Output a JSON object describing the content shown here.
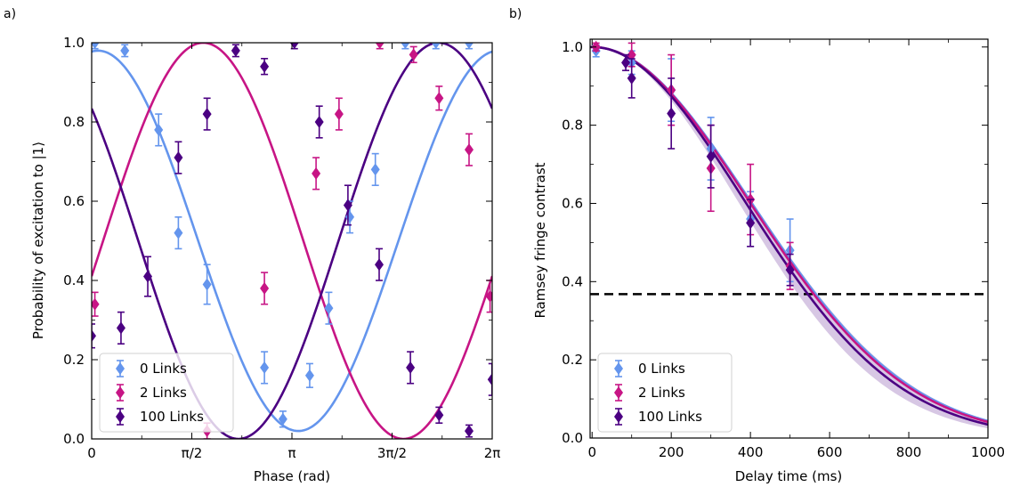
{
  "colors": {
    "0 Links": "#6495ed",
    "2 Links": "#c71585",
    "100 Links": "#4b0082"
  },
  "chart_data": [
    {
      "panel_label": "a)",
      "type": "scatter",
      "xlabel": "Phase (rad)",
      "ylabel": "Probability of excitation to |1⟩",
      "xlim": [
        0,
        6.2832
      ],
      "ylim": [
        0,
        1
      ],
      "xticks": [
        0,
        1.5708,
        3.1416,
        4.7124,
        6.2832
      ],
      "xtick_labels": [
        "0",
        "π/2",
        "π",
        "3π/2",
        "2π"
      ],
      "yticks": [
        0,
        0.2,
        0.4,
        0.6,
        0.8,
        1.0
      ],
      "ytick_labels": [
        "0.0",
        "0.2",
        "0.4",
        "0.6",
        "0.8",
        "1.0"
      ],
      "legend": [
        "0 Links",
        "2 Links",
        "100 Links"
      ],
      "legend_position": "lower-left",
      "series": [
        {
          "name": "0 Links",
          "fit": {
            "offset": 0.5,
            "amplitude": 0.48,
            "phase_shift": 0.1
          },
          "x": [
            0.05,
            0.52,
            1.05,
            1.36,
            1.81,
            2.71,
            3.0,
            3.42,
            3.72,
            4.05,
            4.45,
            4.92,
            5.4,
            5.92
          ],
          "y": [
            1.0,
            0.98,
            0.78,
            0.52,
            0.39,
            0.18,
            0.05,
            0.16,
            0.33,
            0.56,
            0.68,
            1.0,
            1.0,
            1.0
          ],
          "err": [
            0.015,
            0.015,
            0.04,
            0.04,
            0.05,
            0.04,
            0.02,
            0.03,
            0.04,
            0.04,
            0.04,
            0.015,
            0.015,
            0.015
          ]
        },
        {
          "name": "2 Links",
          "fit": {
            "offset": 0.5,
            "amplitude": 0.5,
            "phase_shift": 1.75
          },
          "x": [
            0.05,
            1.81,
            2.71,
            3.52,
            3.88,
            4.52,
            5.05,
            5.45,
            5.92,
            6.25
          ],
          "y": [
            0.34,
            0.02,
            0.38,
            0.67,
            0.82,
            1.0,
            0.97,
            0.86,
            0.73,
            0.36
          ],
          "err": [
            0.03,
            0.02,
            0.04,
            0.04,
            0.04,
            0.015,
            0.02,
            0.03,
            0.04,
            0.04
          ]
        },
        {
          "name": "100 Links",
          "fit": {
            "offset": 0.5,
            "amplitude": 0.5,
            "phase_shift": -0.84
          },
          "x": [
            0.0,
            0.46,
            0.88,
            1.36,
            1.81,
            2.26,
            2.71,
            3.18,
            3.57,
            4.02,
            4.51,
            5.0,
            5.45,
            5.92,
            6.28
          ],
          "y": [
            0.26,
            0.28,
            0.41,
            0.71,
            0.82,
            0.98,
            0.94,
            1.0,
            0.8,
            0.59,
            0.44,
            0.18,
            0.06,
            0.02,
            0.15
          ],
          "err": [
            0.03,
            0.04,
            0.05,
            0.04,
            0.04,
            0.015,
            0.02,
            0.015,
            0.04,
            0.05,
            0.04,
            0.04,
            0.02,
            0.015,
            0.04
          ]
        }
      ]
    },
    {
      "panel_label": "b)",
      "type": "scatter",
      "xlabel": "Delay time (ms)",
      "ylabel": "Ramsey fringe contrast",
      "xlim": [
        -5,
        1000
      ],
      "ylim": [
        0,
        1.02
      ],
      "xticks": [
        0,
        200,
        400,
        600,
        800,
        1000
      ],
      "xtick_labels": [
        "0",
        "200",
        "400",
        "600",
        "800",
        "1000"
      ],
      "yticks": [
        0,
        0.2,
        0.4,
        0.6,
        0.8,
        1.0
      ],
      "ytick_labels": [
        "0.0",
        "0.2",
        "0.4",
        "0.6",
        "0.8",
        "1.0"
      ],
      "legend": [
        "0 Links",
        "2 Links",
        "100 Links"
      ],
      "legend_position": "lower-left",
      "reference_line": {
        "y": 0.3679,
        "style": "dashed",
        "color": "#000000"
      },
      "series": [
        {
          "name": "0 Links",
          "fit": {
            "tau_ms": 565,
            "n": 2
          },
          "x": [
            10,
            100,
            200,
            300,
            400,
            500
          ],
          "y": [
            0.99,
            0.96,
            0.89,
            0.74,
            0.56,
            0.48
          ],
          "err": [
            0.015,
            0.03,
            0.08,
            0.08,
            0.07,
            0.08
          ]
        },
        {
          "name": "2 Links",
          "fit": {
            "tau_ms": 560,
            "n": 2
          },
          "x": [
            10,
            100,
            200,
            300,
            400,
            500
          ],
          "y": [
            1.0,
            0.98,
            0.89,
            0.69,
            0.61,
            0.44
          ],
          "err": [
            0.01,
            0.03,
            0.09,
            0.11,
            0.09,
            0.06
          ]
        },
        {
          "name": "100 Links",
          "fit": {
            "tau_ms": 545,
            "n": 2
          },
          "x": [
            85,
            100,
            200,
            300,
            400,
            500
          ],
          "y": [
            0.96,
            0.92,
            0.83,
            0.72,
            0.55,
            0.43
          ],
          "err": [
            0.02,
            0.05,
            0.09,
            0.08,
            0.06,
            0.04
          ]
        }
      ]
    }
  ]
}
